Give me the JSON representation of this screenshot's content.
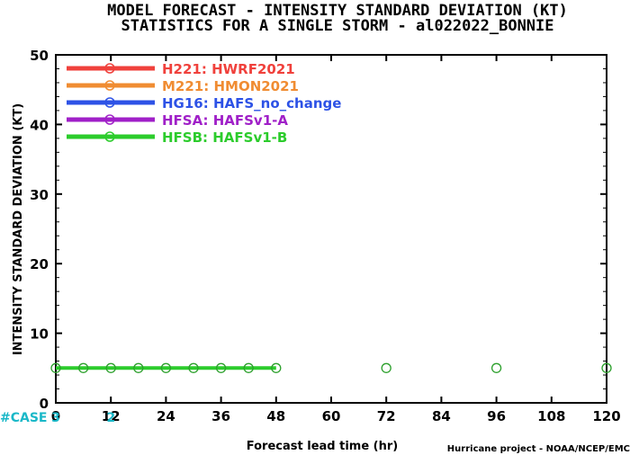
{
  "header": {
    "title_line1": "MODEL FORECAST - INTENSITY STANDARD DEVIATION (KT)",
    "title_line2": "STATISTICS FOR A SINGLE STORM - al022022_BONNIE"
  },
  "footer": {
    "credit": "Hurricane project - NOAA/NCEP/EMC"
  },
  "chart_data": {
    "type": "line",
    "title": "MODEL FORECAST - INTENSITY STANDARD DEVIATION (KT)",
    "subtitle": "STATISTICS FOR A SINGLE STORM - al022022_BONNIE",
    "xlabel": "Forecast lead time (hr)",
    "ylabel": "INTENSITY STANDARD DEVIATION (KT)",
    "xlim": [
      0,
      120
    ],
    "ylim": [
      0,
      50
    ],
    "xticks": [
      0,
      12,
      24,
      36,
      48,
      60,
      72,
      84,
      96,
      108,
      120
    ],
    "yticks": [
      0,
      10,
      20,
      30,
      40,
      50
    ],
    "grid": false,
    "legend_position": "top-left",
    "series": [
      {
        "name": "H221: HWRF2021",
        "color": "#f0413c",
        "x": [],
        "values": []
      },
      {
        "name": "M221: HMON2021",
        "color": "#f08c32",
        "x": [],
        "values": []
      },
      {
        "name": "HG16: HAFS_no_change",
        "color": "#2d52e6",
        "x": [],
        "values": []
      },
      {
        "name": "HFSA: HAFSv1-A",
        "color": "#a020c8",
        "x": [],
        "values": []
      },
      {
        "name": "HFSB: HAFSv1-B",
        "color": "#2ccc2c",
        "x": [
          0,
          6,
          12,
          18,
          24,
          30,
          36,
          42,
          48
        ],
        "values": [
          5,
          5,
          5,
          5,
          5,
          5,
          5,
          5,
          5
        ]
      }
    ],
    "markers_only": {
      "color": "#2ca02c",
      "x": [
        72,
        96,
        120
      ],
      "values": [
        5,
        5,
        5
      ]
    },
    "case_counts": {
      "label": "#CASE",
      "entries": [
        {
          "x": 0,
          "count": "3"
        },
        {
          "x": 12,
          "count": "2"
        }
      ]
    }
  }
}
